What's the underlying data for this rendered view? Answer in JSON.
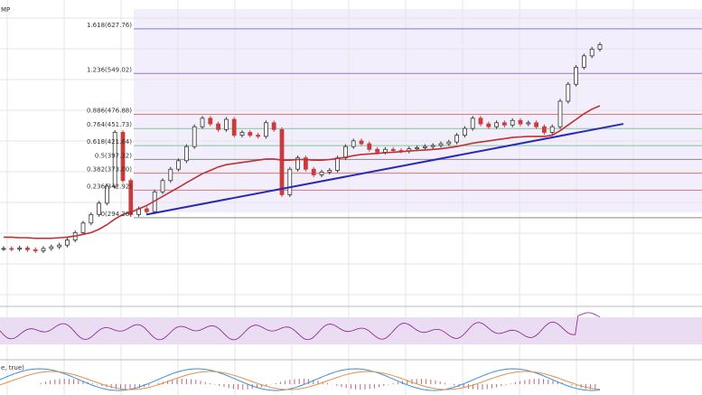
{
  "header": {
    "symbol_fragment": "MP"
  },
  "macd_panel": {
    "label_fragment": "e, true)"
  },
  "colors": {
    "fib_top": "#7b7be0",
    "fib_violet": "#a070c8",
    "fib_red": "#d47a7a",
    "fib_green": "#7ec89a",
    "fib_dark": "#888888",
    "ma": "#c03030",
    "trendline": "#2a2ab8",
    "candle_up": "#333333",
    "candle_down": "#c83c3c",
    "rsi_line": "#8a1a8a",
    "rsi_band": "#eadcf2",
    "macd_blue": "#3a8fd8",
    "macd_orange": "#e0904a",
    "macd_hist": "#c06080",
    "grid": "#e6e6e6"
  },
  "chart_data": {
    "type": "candlestick",
    "y_range": [
      200,
      650
    ],
    "fib_levels": [
      {
        "ratio": "1.618",
        "price": "627.76",
        "color": "fib_top"
      },
      {
        "ratio": "1.236",
        "price": "549.02",
        "color": "fib_violet"
      },
      {
        "ratio": "0.886",
        "price": "476.88",
        "color": "fib_red"
      },
      {
        "ratio": "0.764",
        "price": "451.73",
        "color": "fib_green"
      },
      {
        "ratio": "0.618",
        "price": "421.64",
        "color": "fib_green"
      },
      {
        "ratio": "0.5",
        "price": "397.32",
        "color": "fib_dark"
      },
      {
        "ratio": "0.382",
        "price": "373.00",
        "color": "fib_red"
      },
      {
        "ratio": "0.236",
        "price": "342.92",
        "color": "fib_red"
      },
      {
        "ratio": "0",
        "price": "294.26",
        "color": "fib_dark"
      }
    ],
    "fib_label_texts": [
      "1.618(627.76)",
      "1.236(549.02)",
      "0.886(476.88)",
      "0.764(451.73)",
      "0.618(421.64)",
      "0.5(397.32)",
      "0.382(373.00)",
      "0.236(342.92)",
      "0(294.26)"
    ],
    "close_series": [
      240,
      239,
      241,
      238,
      236,
      240,
      243,
      246,
      255,
      268,
      285,
      300,
      320,
      350,
      445,
      360,
      300,
      310,
      305,
      340,
      360,
      380,
      395,
      420,
      455,
      470,
      460,
      450,
      468,
      440,
      445,
      440,
      438,
      462,
      450,
      335,
      380,
      400,
      380,
      370,
      375,
      378,
      400,
      420,
      430,
      425,
      415,
      410,
      415,
      413,
      412,
      416,
      418,
      420,
      422,
      425,
      428,
      440,
      452,
      470,
      460,
      455,
      462,
      458,
      466,
      460,
      462,
      455,
      445,
      455,
      500,
      530,
      560,
      580,
      592,
      600
    ],
    "ma_series": [
      260,
      260,
      259,
      259,
      258,
      258,
      258,
      259,
      260,
      262,
      265,
      268,
      274,
      282,
      292,
      300,
      304,
      310,
      316,
      324,
      332,
      340,
      348,
      356,
      364,
      372,
      378,
      384,
      388,
      390,
      392,
      394,
      396,
      398,
      398,
      396,
      396,
      397,
      397,
      396,
      396,
      397,
      399,
      401,
      404,
      406,
      407,
      408,
      409,
      410,
      411,
      412,
      413,
      414,
      415,
      416,
      418,
      420,
      423,
      426,
      428,
      430,
      432,
      434,
      436,
      437,
      438,
      438,
      438,
      440,
      448,
      458,
      468,
      478,
      486,
      492
    ],
    "trendline": {
      "start_price": 300,
      "end_price": 460
    }
  }
}
